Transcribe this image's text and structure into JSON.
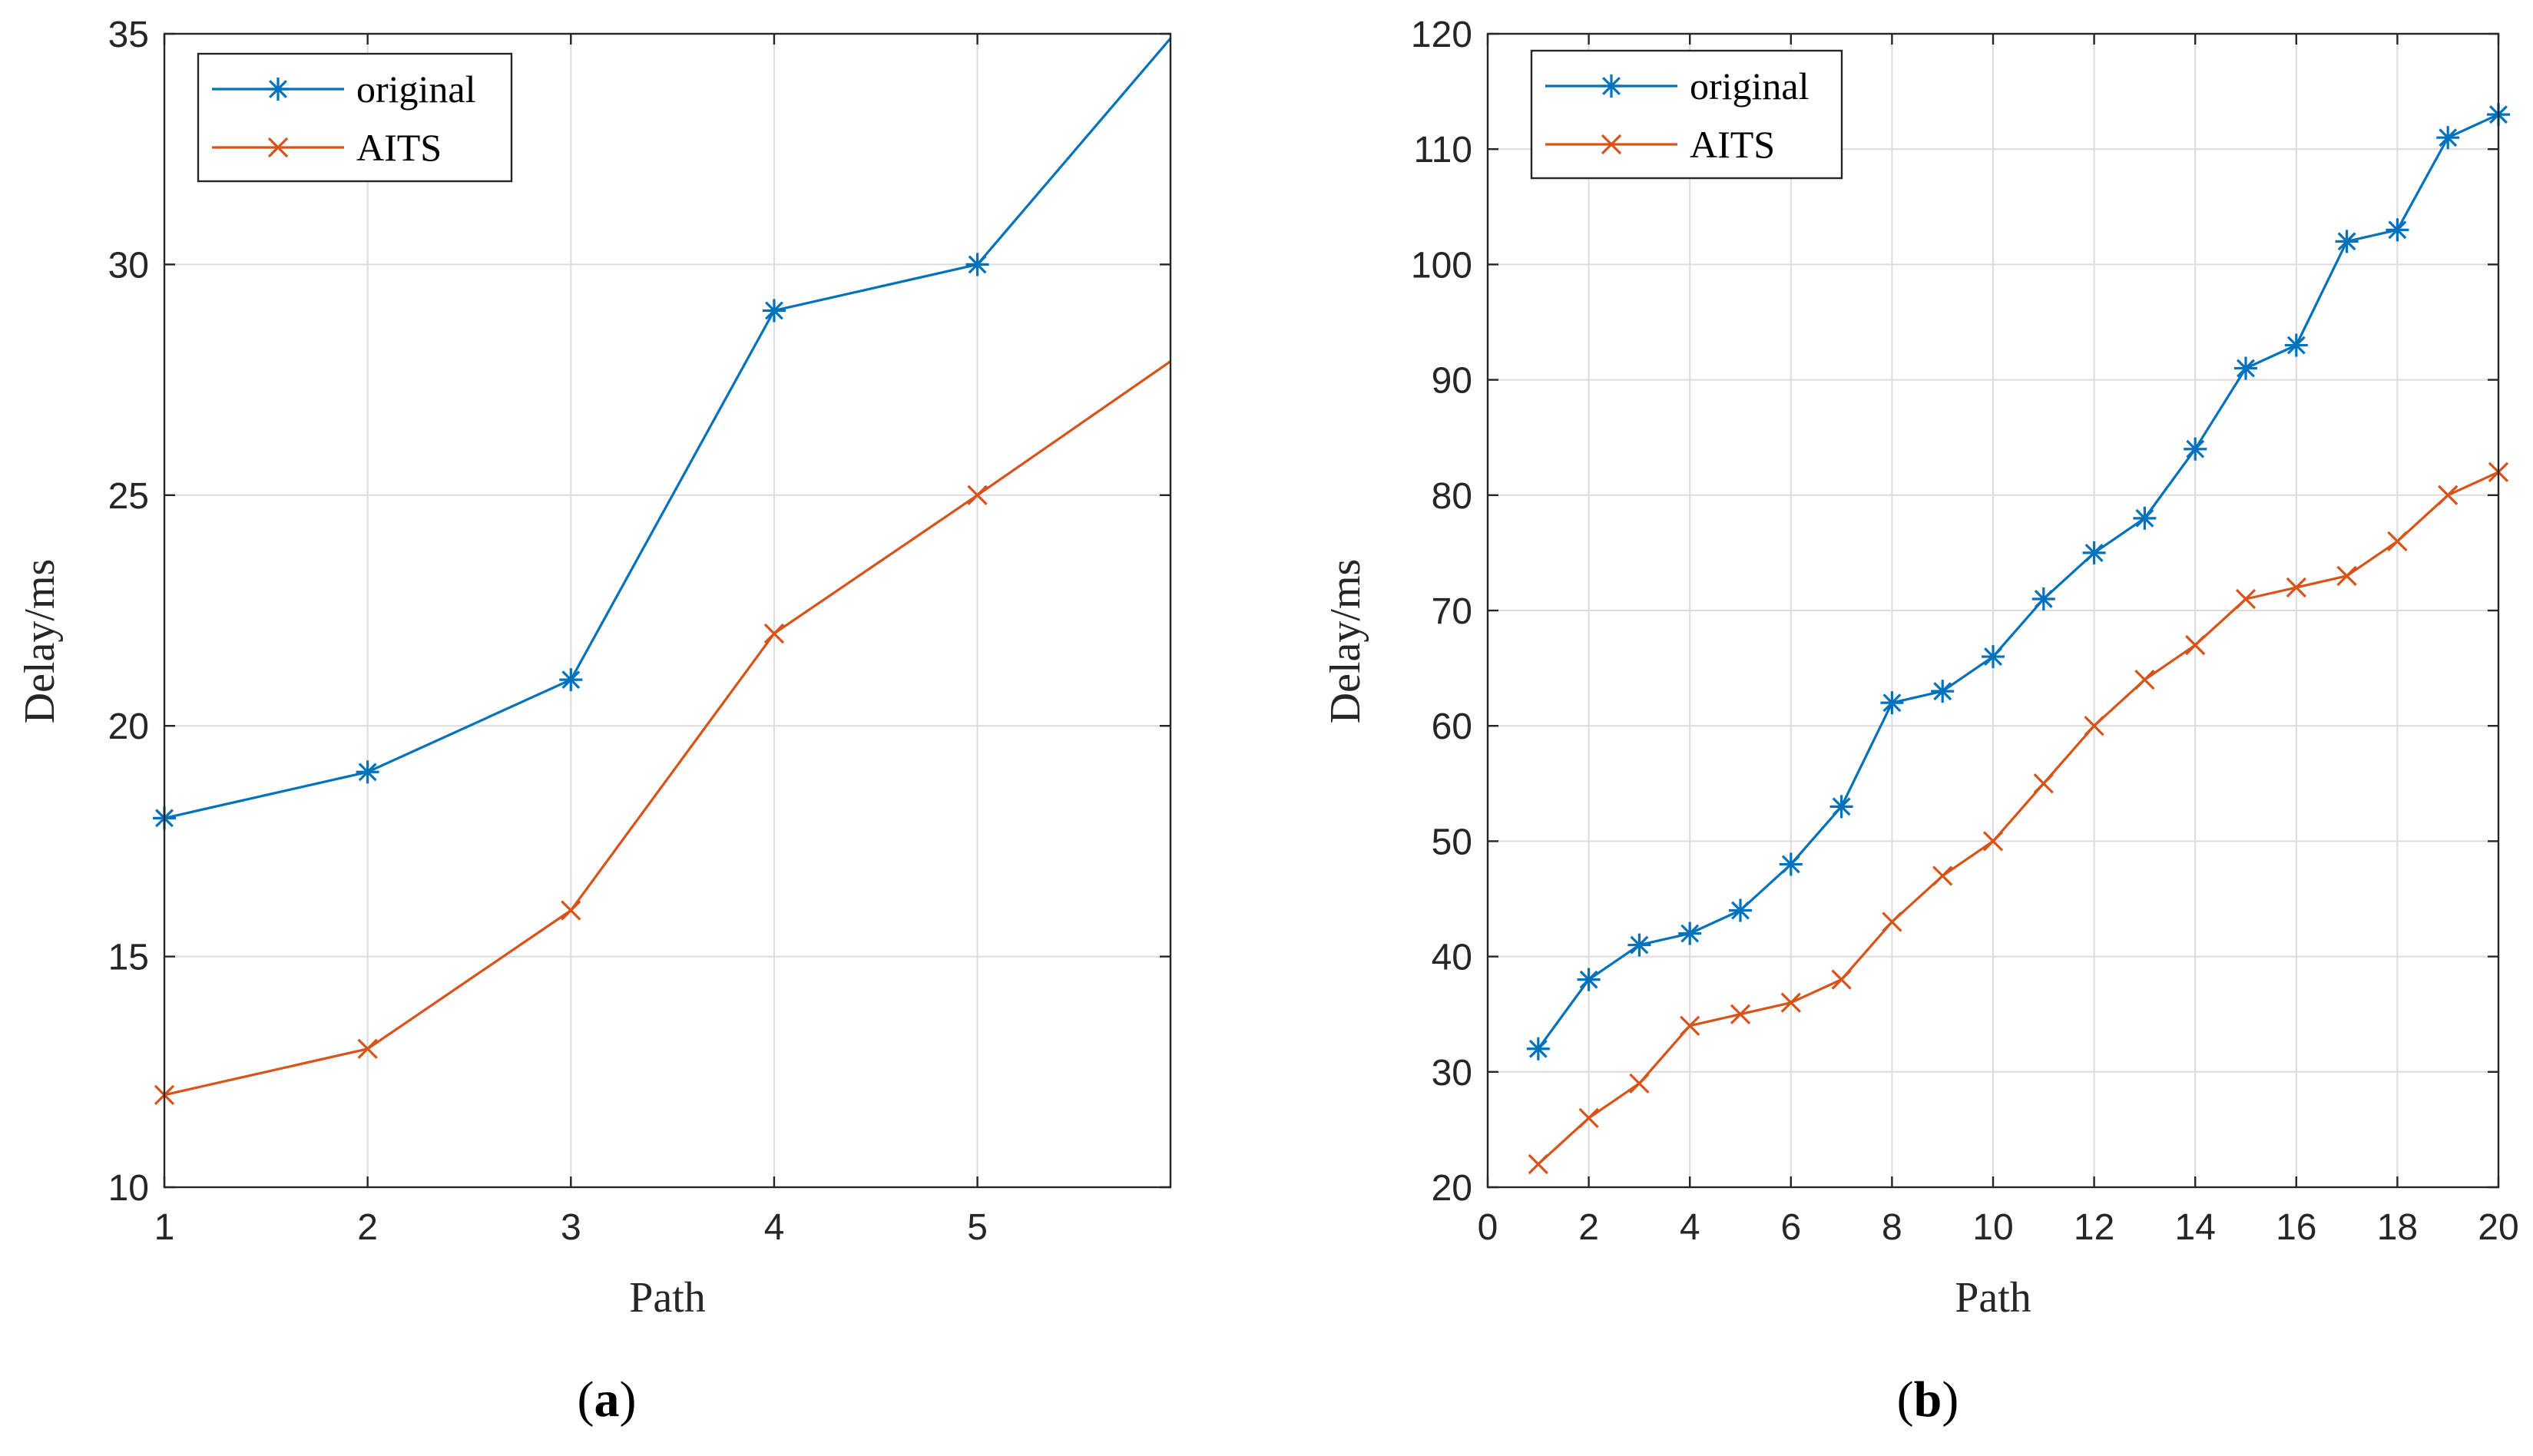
{
  "colors": {
    "original": "#0072BD",
    "aits": "#D95319",
    "grid": "#DCDCDC",
    "axis": "#262626"
  },
  "chart_data": [
    {
      "type": "line",
      "caption": "a",
      "xlabel": "Path",
      "ylabel": "Delay/ms",
      "xlim": [
        1,
        5.95
      ],
      "ylim": [
        10,
        35
      ],
      "xticks": [
        1,
        2,
        3,
        4,
        5
      ],
      "yticks": [
        10,
        15,
        20,
        25,
        30,
        35
      ],
      "grid": true,
      "legend_position": "top-left",
      "series": [
        {
          "name": "original",
          "marker": "asterisk",
          "x": [
            1,
            2,
            3,
            4,
            5,
            5.95
          ],
          "values": [
            18,
            19,
            21,
            29,
            30,
            34.9
          ]
        },
        {
          "name": "AITS",
          "marker": "x",
          "x": [
            1,
            2,
            3,
            4,
            5,
            5.95
          ],
          "values": [
            12,
            13,
            16,
            22,
            25,
            27.9
          ]
        }
      ]
    },
    {
      "type": "line",
      "caption": "b",
      "xlabel": "Path",
      "ylabel": "Delay/ms",
      "xlim": [
        0,
        20
      ],
      "ylim": [
        20,
        120
      ],
      "xticks": [
        0,
        2,
        4,
        6,
        8,
        10,
        12,
        14,
        16,
        18,
        20
      ],
      "yticks": [
        20,
        30,
        40,
        50,
        60,
        70,
        80,
        90,
        100,
        110,
        120
      ],
      "grid": true,
      "legend_position": "top-left",
      "series": [
        {
          "name": "original",
          "marker": "asterisk",
          "x": [
            1,
            2,
            3,
            4,
            5,
            6,
            7,
            8,
            9,
            10,
            11,
            12,
            13,
            14,
            15,
            16,
            17,
            18,
            19,
            20
          ],
          "values": [
            32,
            38,
            41,
            42,
            44,
            48,
            53,
            62,
            63,
            66,
            71,
            75,
            78,
            84,
            91,
            93,
            102,
            103,
            111,
            113
          ]
        },
        {
          "name": "AITS",
          "marker": "x",
          "x": [
            1,
            2,
            3,
            4,
            5,
            6,
            7,
            8,
            9,
            10,
            11,
            12,
            13,
            14,
            15,
            16,
            17,
            18,
            19,
            20
          ],
          "values": [
            22,
            26,
            29,
            34,
            35,
            36,
            38,
            43,
            47,
            50,
            55,
            60,
            64,
            67,
            71,
            72,
            73,
            76,
            80,
            82
          ]
        }
      ]
    }
  ]
}
